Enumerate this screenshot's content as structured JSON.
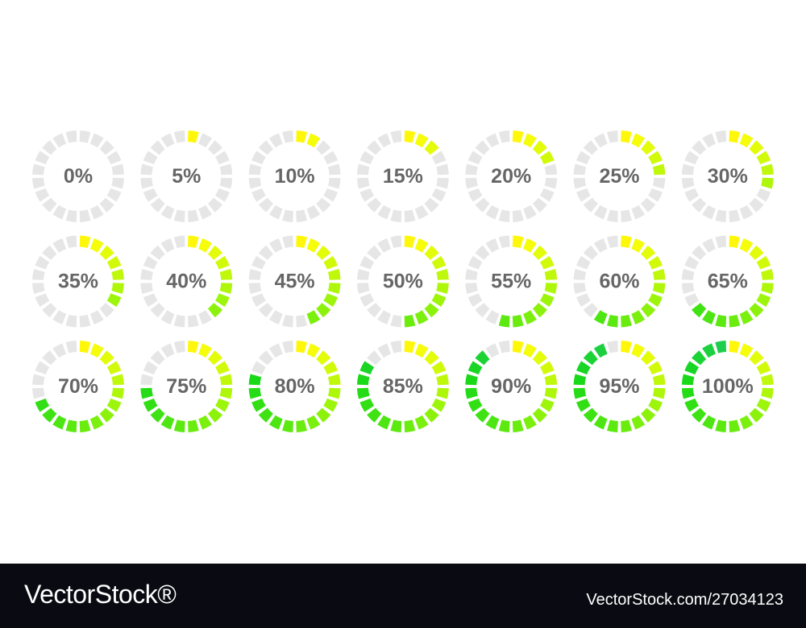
{
  "indicators": [
    {
      "label": "0%",
      "value": 0
    },
    {
      "label": "5%",
      "value": 5
    },
    {
      "label": "10%",
      "value": 10
    },
    {
      "label": "15%",
      "value": 15
    },
    {
      "label": "20%",
      "value": 20
    },
    {
      "label": "25%",
      "value": 25
    },
    {
      "label": "30%",
      "value": 30
    },
    {
      "label": "35%",
      "value": 35
    },
    {
      "label": "40%",
      "value": 40
    },
    {
      "label": "45%",
      "value": 45
    },
    {
      "label": "50%",
      "value": 50
    },
    {
      "label": "55%",
      "value": 55
    },
    {
      "label": "60%",
      "value": 60
    },
    {
      "label": "65%",
      "value": 65
    },
    {
      "label": "70%",
      "value": 70
    },
    {
      "label": "75%",
      "value": 75
    },
    {
      "label": "80%",
      "value": 80
    },
    {
      "label": "85%",
      "value": 85
    },
    {
      "label": "90%",
      "value": 90
    },
    {
      "label": "95%",
      "value": 95
    },
    {
      "label": "100%",
      "value": 100
    }
  ],
  "footer": {
    "brand": "VectorStock®",
    "id": "VectorStock.com/27034123"
  }
}
